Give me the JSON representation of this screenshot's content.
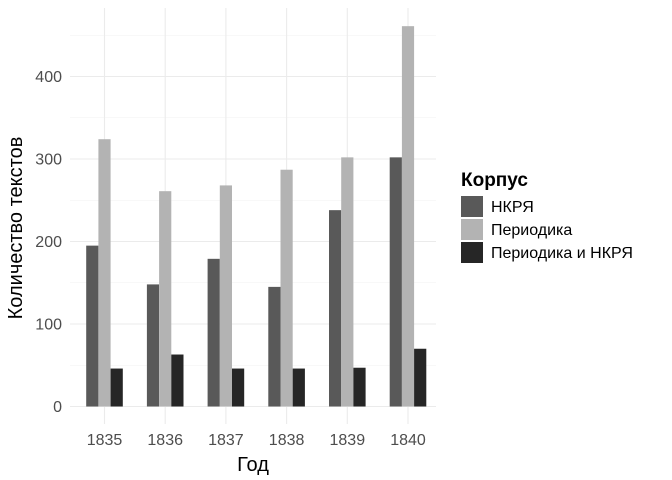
{
  "chart_data": {
    "type": "bar",
    "categories": [
      "1835",
      "1836",
      "1837",
      "1838",
      "1839",
      "1840"
    ],
    "series": [
      {
        "name": "НКРЯ",
        "values": [
          195,
          148,
          179,
          145,
          238,
          302
        ],
        "color": "#595959"
      },
      {
        "name": "Периодика",
        "values": [
          324,
          261,
          268,
          287,
          302,
          461
        ],
        "color": "#b3b3b3"
      },
      {
        "name": "Периодика и НКРЯ",
        "values": [
          46,
          63,
          46,
          46,
          47,
          70
        ],
        "color": "#262626"
      }
    ],
    "xlabel": "Год",
    "ylabel": "Количество текстов",
    "ylim": [
      0,
      480
    ],
    "yticks": [
      0,
      100,
      200,
      300,
      400
    ],
    "grid": true,
    "legend": {
      "title": "Корпус",
      "position": "right"
    }
  }
}
